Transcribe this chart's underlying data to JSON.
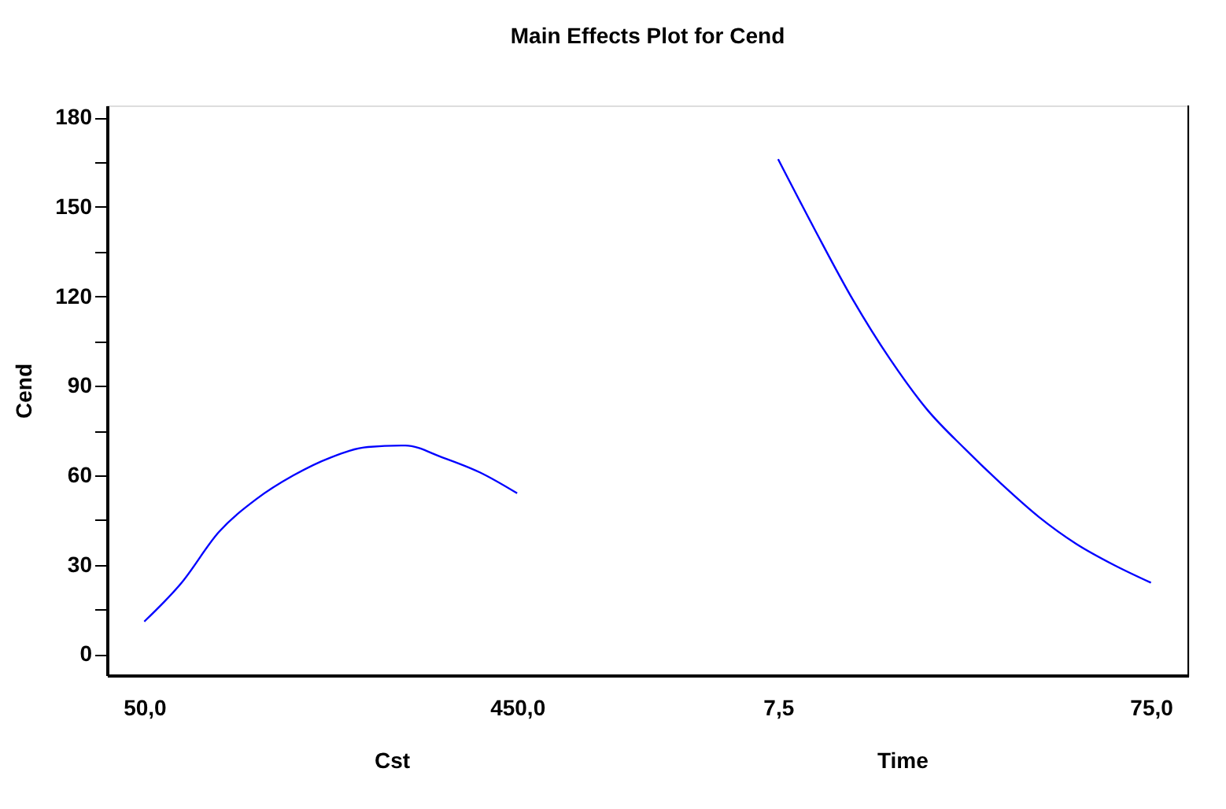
{
  "chart_data": {
    "type": "line",
    "title": "Main Effects Plot for Cend",
    "ylabel": "Cend",
    "categories": [
      "50,0",
      null,
      null,
      null,
      null,
      null,
      null,
      null,
      null,
      null,
      "450,0",
      null,
      null,
      null,
      null,
      null,
      null,
      "7,5",
      null,
      null,
      null,
      null,
      null,
      null,
      null,
      null,
      null,
      "75,0"
    ],
    "series": [
      {
        "color": "#0000ff",
        "values": [
          11,
          24,
          41,
          52,
          60,
          66,
          69.5,
          70,
          66,
          61,
          54,
          null,
          null,
          null,
          null,
          null,
          null,
          null,
          null,
          null,
          null,
          null,
          null,
          null,
          null,
          null,
          null,
          null
        ]
      },
      {
        "color": "#0000ff",
        "values": [
          null,
          null,
          null,
          null,
          null,
          null,
          null,
          null,
          null,
          null,
          null,
          null,
          null,
          null,
          null,
          null,
          null,
          166,
          142,
          119,
          99,
          82,
          69,
          57,
          46,
          37,
          30,
          24
        ]
      }
    ],
    "ylim": [
      -7,
      184
    ],
    "yticks": [
      0,
      {
        "value": 15,
        "label": null
      },
      30,
      {
        "value": 45,
        "label": null
      },
      60,
      {
        "value": 75,
        "label": null
      },
      90,
      {
        "value": 105,
        "label": null
      },
      120,
      {
        "value": 135,
        "label": null
      },
      150,
      {
        "value": 165,
        "label": null
      },
      180
    ],
    "annotations": [
      "Cst",
      "Time"
    ],
    "grid": false
  }
}
